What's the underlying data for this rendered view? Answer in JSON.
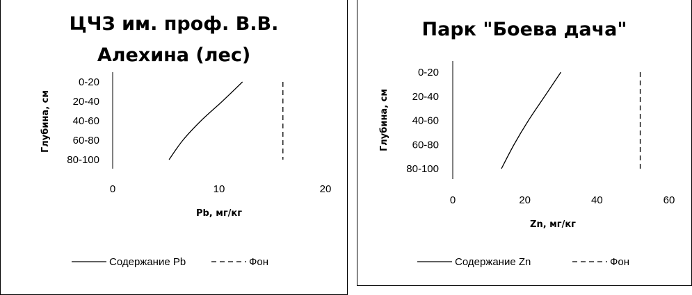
{
  "chart_data": [
    {
      "type": "line",
      "title_lines": [
        "ЦЧЗ им. проф. В.В.",
        "Алехина (лес)"
      ],
      "xlabel": "Pb, мг/кг",
      "ylabel": "Глубина, см",
      "xlim": [
        0,
        20
      ],
      "xticks": [
        "0",
        "10",
        "20"
      ],
      "categories": [
        "0-20",
        "20-40",
        "40-60",
        "60-80",
        "80-100"
      ],
      "series": [
        {
          "name": "Содержание Pb",
          "style": "solid",
          "values": [
            12.2,
            10.3,
            8.3,
            6.6,
            5.3
          ]
        },
        {
          "name": "Фон",
          "style": "dashed",
          "values": [
            16,
            16,
            16,
            16,
            16
          ]
        }
      ],
      "legend": "bottom",
      "grid": false
    },
    {
      "type": "line",
      "title_lines": [
        "Парк \"Боева дача\""
      ],
      "xlabel": "Zn, мг/кг",
      "ylabel": "Глубина, см",
      "xlim": [
        0,
        60
      ],
      "xticks": [
        "0",
        "20",
        "40",
        "60"
      ],
      "categories": [
        "0-20",
        "20-40",
        "40-60",
        "60-80",
        "80-100"
      ],
      "series": [
        {
          "name": "Содержание Zn",
          "style": "solid",
          "values": [
            30,
            25.5,
            21,
            17,
            13.5
          ]
        },
        {
          "name": "Фон",
          "style": "dashed",
          "values": [
            52,
            52,
            52,
            52,
            52
          ]
        }
      ],
      "legend": "bottom",
      "grid": false
    }
  ]
}
